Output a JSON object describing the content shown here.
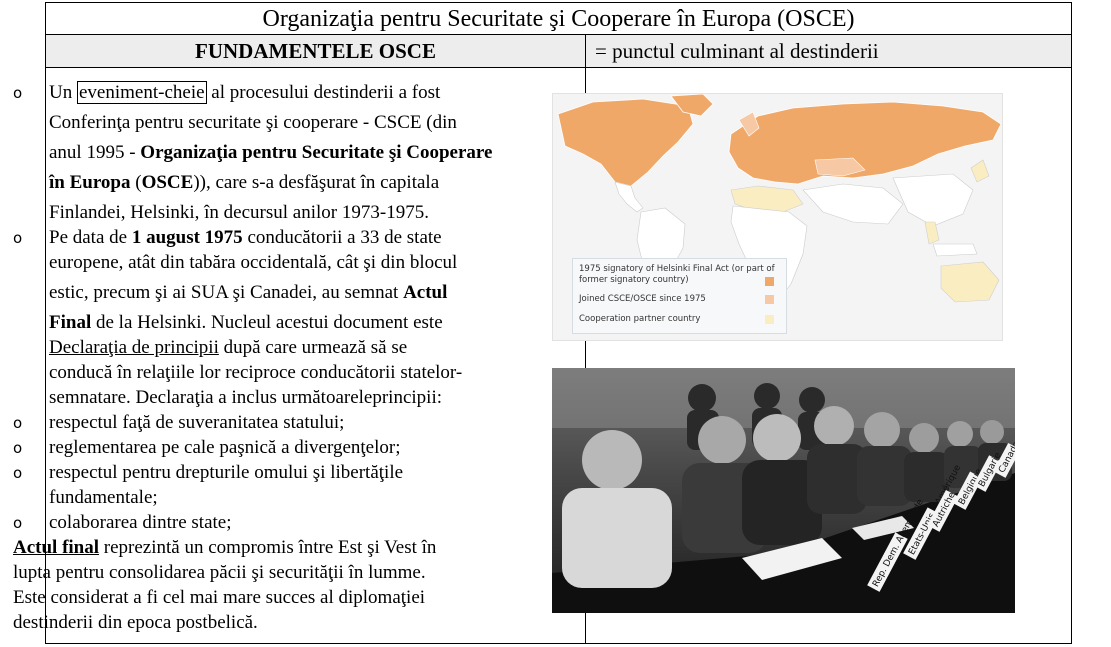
{
  "title": "Organizaţia pentru Securitate şi Cooperare în Europa (OSCE)",
  "header": {
    "left": "FUNDAMENTELE OSCE",
    "right": "= punctul culminant al destinderii"
  },
  "bullet_symbol": "o",
  "text": {
    "p1_before": "Un ",
    "p1_boxed": "eveniment-cheie",
    "p1_after": " al procesului destinderii a fost",
    "p1_l2": "Conferinţa pentru securitate şi cooperare - CSCE (din",
    "p1_l3_a": "anul 1995 - ",
    "p1_l3_b": "Organizaţia pentru Securitate şi Cooperare",
    "p1_l4_a": "în Europa",
    "p1_l4_b": " (",
    "p1_l4_c": "OSCE",
    "p1_l4_d": ")), care s-a desfăşurat în capitala",
    "p1_l5": "Finlandei, Helsinki, în decursul anilor 1973-1975.",
    "p2_a": "Pe data de ",
    "p2_b": "1 august 1975",
    "p2_c": " conducătorii a 33 de state",
    "p2_l2": "europene, atât din tabăra occidentală, cât şi din blocul",
    "p2_l3_a": "estic, precum şi ai SUA şi Canadei, au semnat ",
    "p2_l3_b": "Actul",
    "p2_l4_a": "Final",
    "p2_l4_b": " de la Helsinki. Nucleul acestui document este",
    "p2_l5_a": "Declaraţia de principii",
    "p2_l5_b": " după care urmează să se",
    "p2_l6": "conducă în relaţiile lor reciproce conducătorii statelor-",
    "p2_l7": "semnatare. Declaraţia a inclus următoareleprincipii:",
    "pr1": "respectul faţă de suveranitatea statului;",
    "pr2": "reglementarea pe cale paşnică a divergenţelor;",
    "pr3_a": "respectul pentru drepturile omului şi libertăţile",
    "pr3_b": "fundamentale;",
    "pr4": "colaborarea dintre state;",
    "c1_a": "Actul final",
    "c1_b": " reprezintă un compromis între Est şi Vest în",
    "c2": "lupta pentru consolidarea păcii şi securităţii în lumme.",
    "c3": "Este considerat a fi cel mai mare succes al diplomaţiei",
    "c4": "destinderii din epoca postbelică."
  },
  "map": {
    "legend": [
      {
        "label_l1": "1975 signatory of Helsinki Final Act (or part of",
        "label_l2": "former signatory country)",
        "color": "#f0a868"
      },
      {
        "label_l1": "Joined CSCE/OSCE since 1975",
        "color": "#f6c9a4"
      },
      {
        "label_l1": "Cooperation partner country",
        "color": "#fbedc2"
      }
    ]
  },
  "photo": {
    "placards": [
      "Rep. Dem. Allemande",
      "Etats-Unis d'Amérique",
      "Autriche",
      "Belgique",
      "Bulgarie",
      "Canada"
    ]
  }
}
